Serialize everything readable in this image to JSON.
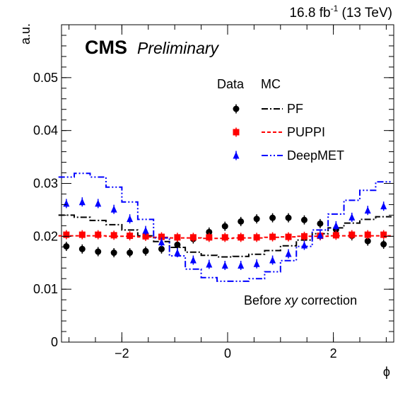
{
  "chart_data": {
    "type": "scatter",
    "lumi_label": "16.8 fb",
    "lumi_exp": "-1",
    "lumi_energy": " (13 TeV)",
    "cms_label": "CMS",
    "preliminary_label": "Preliminary",
    "ylabel": "a.u.",
    "xlabel": "ϕ",
    "xlim": [
      -3.14159,
      3.14159
    ],
    "ylim": [
      0,
      0.06
    ],
    "x_ticks": [
      -2,
      0,
      2
    ],
    "x_tick_labels": [
      "−2",
      "0",
      "2"
    ],
    "y_ticks": [
      0,
      0.01,
      0.02,
      0.03,
      0.04,
      0.05
    ],
    "y_tick_labels": [
      "0",
      "0.01",
      "0.02",
      "0.03",
      "0.04",
      "0.05"
    ],
    "annotation": {
      "pre": "Before ",
      "italic": "xy",
      "post": " correction"
    },
    "legend": {
      "header_data": "Data",
      "header_mc": "MC",
      "entries": [
        "PF",
        "PUPPI",
        "DeepMET"
      ],
      "placement": "top-right"
    },
    "colors": {
      "PF": "#000000",
      "PUPPI": "#ff0000",
      "DeepMET": "#0000ff"
    },
    "data_series": [
      {
        "name": "PF",
        "marker": "circle",
        "x": [
          -3.05,
          -2.75,
          -2.45,
          -2.15,
          -1.85,
          -1.55,
          -1.25,
          -0.95,
          -0.65,
          -0.35,
          -0.05,
          0.25,
          0.55,
          0.85,
          1.15,
          1.45,
          1.75,
          2.05,
          2.35,
          2.65,
          2.95
        ],
        "y": [
          0.0181,
          0.0176,
          0.0171,
          0.0169,
          0.0169,
          0.0172,
          0.0176,
          0.0184,
          0.0195,
          0.0208,
          0.0219,
          0.0228,
          0.0233,
          0.0235,
          0.0235,
          0.0231,
          0.0224,
          0.0213,
          0.0201,
          0.0191,
          0.0185
        ]
      },
      {
        "name": "PUPPI",
        "marker": "square",
        "x": [
          -3.05,
          -2.75,
          -2.45,
          -2.15,
          -1.85,
          -1.55,
          -1.25,
          -0.95,
          -0.65,
          -0.35,
          -0.05,
          0.25,
          0.55,
          0.85,
          1.15,
          1.45,
          1.75,
          2.05,
          2.35,
          2.65,
          2.95
        ],
        "y": [
          0.0203,
          0.0203,
          0.0203,
          0.0202,
          0.0201,
          0.02,
          0.0199,
          0.0198,
          0.0198,
          0.0198,
          0.0198,
          0.0198,
          0.0198,
          0.0199,
          0.0199,
          0.02,
          0.0201,
          0.0202,
          0.0203,
          0.0203,
          0.0203
        ]
      },
      {
        "name": "DeepMET",
        "marker": "triangle",
        "x": [
          -3.05,
          -2.75,
          -2.45,
          -2.15,
          -1.85,
          -1.55,
          -1.25,
          -0.95,
          -0.65,
          -0.35,
          -0.05,
          0.25,
          0.55,
          0.85,
          1.15,
          1.45,
          1.75,
          2.05,
          2.35,
          2.65,
          2.95
        ],
        "y": [
          0.0262,
          0.0265,
          0.0262,
          0.0251,
          0.0233,
          0.0211,
          0.0189,
          0.0169,
          0.0155,
          0.0147,
          0.0145,
          0.0145,
          0.0148,
          0.0155,
          0.0167,
          0.0183,
          0.0202,
          0.022,
          0.0236,
          0.0249,
          0.0257
        ]
      }
    ],
    "mc_series": [
      {
        "name": "PF",
        "dash": "dashdot",
        "x": [
          -3.05,
          -2.75,
          -2.45,
          -2.15,
          -1.85,
          -1.55,
          -1.25,
          -0.95,
          -0.65,
          -0.35,
          -0.05,
          0.25,
          0.55,
          0.85,
          1.15,
          1.45,
          1.75,
          2.05,
          2.35,
          2.65,
          2.95
        ],
        "y": [
          0.024,
          0.0236,
          0.023,
          0.0222,
          0.0212,
          0.0201,
          0.019,
          0.0179,
          0.017,
          0.0164,
          0.0161,
          0.0162,
          0.0166,
          0.0173,
          0.0182,
          0.0193,
          0.0205,
          0.0216,
          0.0225,
          0.0232,
          0.0237
        ]
      },
      {
        "name": "PUPPI",
        "dash": "dashed",
        "x": [
          -3.05,
          -2.75,
          -2.45,
          -2.15,
          -1.85,
          -1.55,
          -1.25,
          -0.95,
          -0.65,
          -0.35,
          -0.05,
          0.25,
          0.55,
          0.85,
          1.15,
          1.45,
          1.75,
          2.05,
          2.35,
          2.65,
          2.95
        ],
        "y": [
          0.0201,
          0.0201,
          0.0201,
          0.02,
          0.02,
          0.0199,
          0.0198,
          0.0197,
          0.0197,
          0.0196,
          0.0196,
          0.0197,
          0.0197,
          0.0198,
          0.0199,
          0.02,
          0.02,
          0.0201,
          0.0201,
          0.0201,
          0.0201
        ]
      },
      {
        "name": "DeepMET",
        "dash": "dashdotdot",
        "x": [
          -3.05,
          -2.75,
          -2.45,
          -2.15,
          -1.85,
          -1.55,
          -1.25,
          -0.95,
          -0.65,
          -0.35,
          -0.05,
          0.25,
          0.55,
          0.85,
          1.15,
          1.45,
          1.75,
          2.05,
          2.35,
          2.65,
          2.95
        ],
        "y": [
          0.0312,
          0.0319,
          0.0312,
          0.0293,
          0.0265,
          0.0232,
          0.0197,
          0.0163,
          0.0138,
          0.0122,
          0.0115,
          0.0115,
          0.012,
          0.0133,
          0.0154,
          0.0181,
          0.0212,
          0.0242,
          0.0268,
          0.0287,
          0.0303
        ]
      }
    ]
  }
}
